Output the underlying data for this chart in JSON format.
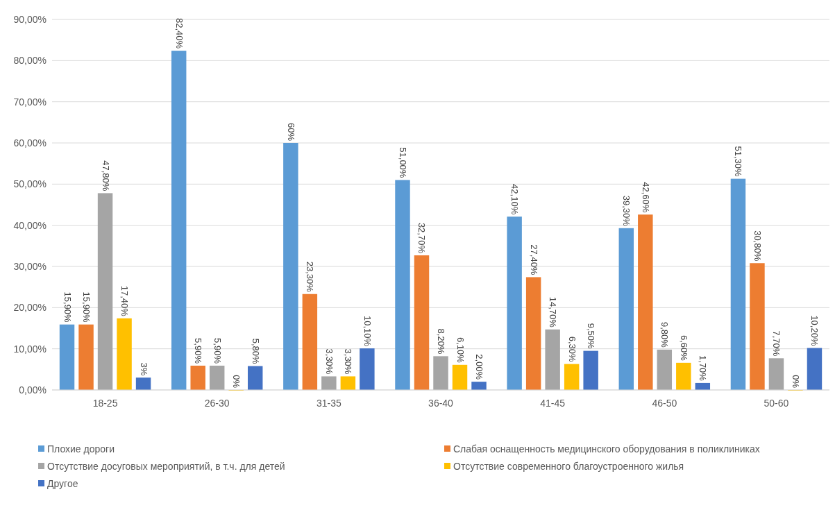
{
  "chart_data": {
    "type": "bar",
    "categories": [
      "18-25",
      "26-30",
      "31-35",
      "36-40",
      "41-45",
      "46-50",
      "50-60"
    ],
    "series": [
      {
        "name": "Плохие дороги",
        "color": "#5b9bd5",
        "values": [
          15.9,
          82.4,
          60,
          51,
          42.1,
          39.3,
          51.3
        ],
        "value_labels": [
          "15,90%",
          "82,40%",
          "60%",
          "51,00%",
          "42,10%",
          "39,30%",
          "51,30%"
        ]
      },
      {
        "name": "Слабая оснащенность медицинского оборудования в поликлиниках",
        "color": "#ed7d31",
        "values": [
          15.9,
          5.9,
          23.3,
          32.7,
          27.4,
          42.6,
          30.8
        ],
        "value_labels": [
          "15,90%",
          "5,90%",
          "23,30%",
          "32,70%",
          "27,40%",
          "42,60%",
          "30,80%"
        ]
      },
      {
        "name": "Отсутствие досуговых мероприятий, в т.ч. для детей",
        "color": "#a5a5a5",
        "values": [
          47.8,
          5.9,
          3.3,
          8.2,
          14.7,
          9.8,
          7.7
        ],
        "value_labels": [
          "47,80%",
          "5,90%",
          "3,30%",
          "8,20%",
          "14,70%",
          "9,80%",
          "7,70%"
        ]
      },
      {
        "name": "Отсутствие современного благоустроенного жилья",
        "color": "#ffc000",
        "values": [
          17.4,
          0,
          3.3,
          6.1,
          6.3,
          6.6,
          0
        ],
        "value_labels": [
          "17,40%",
          "0%",
          "3,30%",
          "6,10%",
          "6,30%",
          "6,60%",
          "0%"
        ]
      },
      {
        "name": "Другое",
        "color": "#4472c4",
        "values": [
          3,
          5.8,
          10.1,
          2,
          9.5,
          1.7,
          10.2
        ],
        "value_labels": [
          "3%",
          "5,80%",
          "10,10%",
          "2,00%",
          "9,50%",
          "1,70%",
          "10,20%"
        ]
      }
    ],
    "ylim": [
      0,
      90
    ],
    "yticks": [
      {
        "value": 0,
        "label": "0,00%"
      },
      {
        "value": 10,
        "label": "10,00%"
      },
      {
        "value": 20,
        "label": "20,00%"
      },
      {
        "value": 30,
        "label": "30,00%"
      },
      {
        "value": 40,
        "label": "40,00%"
      },
      {
        "value": 50,
        "label": "50,00%"
      },
      {
        "value": 60,
        "label": "60,00%"
      },
      {
        "value": 70,
        "label": "70,00%"
      },
      {
        "value": 80,
        "label": "80,00%"
      },
      {
        "value": 90,
        "label": "90,00%"
      }
    ],
    "grid": "y",
    "legend": "bottom"
  }
}
